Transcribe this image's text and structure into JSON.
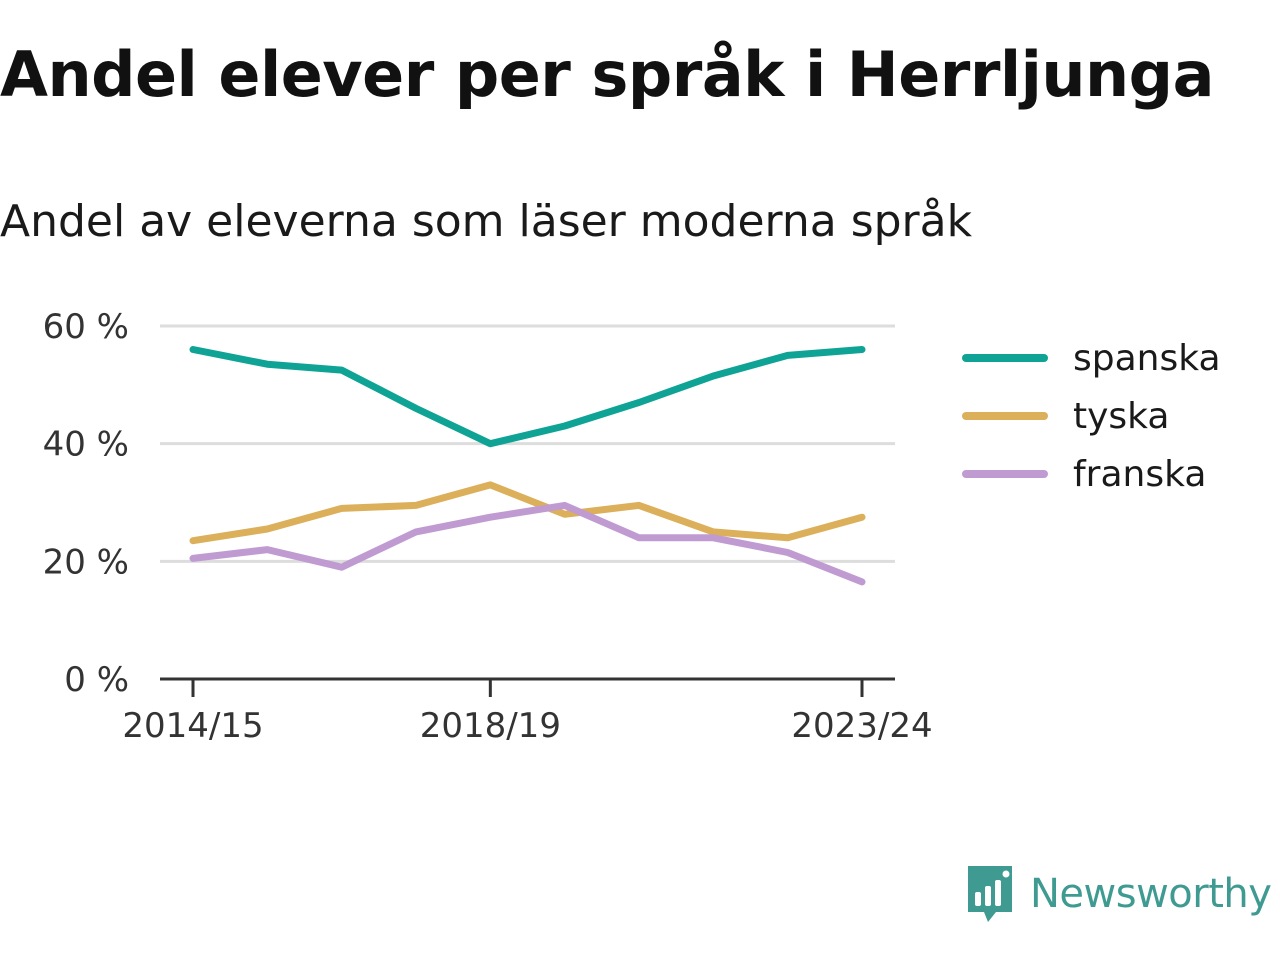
{
  "header": {
    "title": "Andel elever per språk i Herrljunga",
    "subtitle": "Andel av eleverna som läser moderna språk"
  },
  "brand": {
    "name": "Newsworthy",
    "color": "#3f9b92",
    "icon": "bar-chart-speech-bubble-icon"
  },
  "chart_data": {
    "type": "line",
    "title": "Andel elever per språk i Herrljunga",
    "subtitle": "Andel av eleverna som läser moderna språk",
    "x": [
      "2014/15",
      "2015/16",
      "2016/17",
      "2017/18",
      "2018/19",
      "2019/20",
      "2020/21",
      "2021/22",
      "2022/23",
      "2023/24"
    ],
    "x_tick_labels": [
      "2014/15",
      "2018/19",
      "2023/24"
    ],
    "y_ticks": [
      0,
      20,
      40,
      60
    ],
    "y_tick_labels": [
      "0 %",
      "20 %",
      "40 %",
      "60 %"
    ],
    "ylim": [
      0,
      60
    ],
    "grid": true,
    "legend_position": "right",
    "series": [
      {
        "name": "spanska",
        "color": "#0fa396",
        "values": [
          56,
          53.5,
          52.5,
          46,
          40,
          43,
          47,
          51.5,
          55,
          56
        ]
      },
      {
        "name": "tyska",
        "color": "#dcaf5a",
        "values": [
          23.5,
          25.5,
          29,
          29.5,
          33,
          28,
          29.5,
          25,
          24,
          27.5
        ]
      },
      {
        "name": "franska",
        "color": "#c09bd1",
        "values": [
          20.5,
          22,
          19,
          25,
          27.5,
          29.5,
          24,
          24,
          21.5,
          16.5
        ]
      }
    ]
  }
}
